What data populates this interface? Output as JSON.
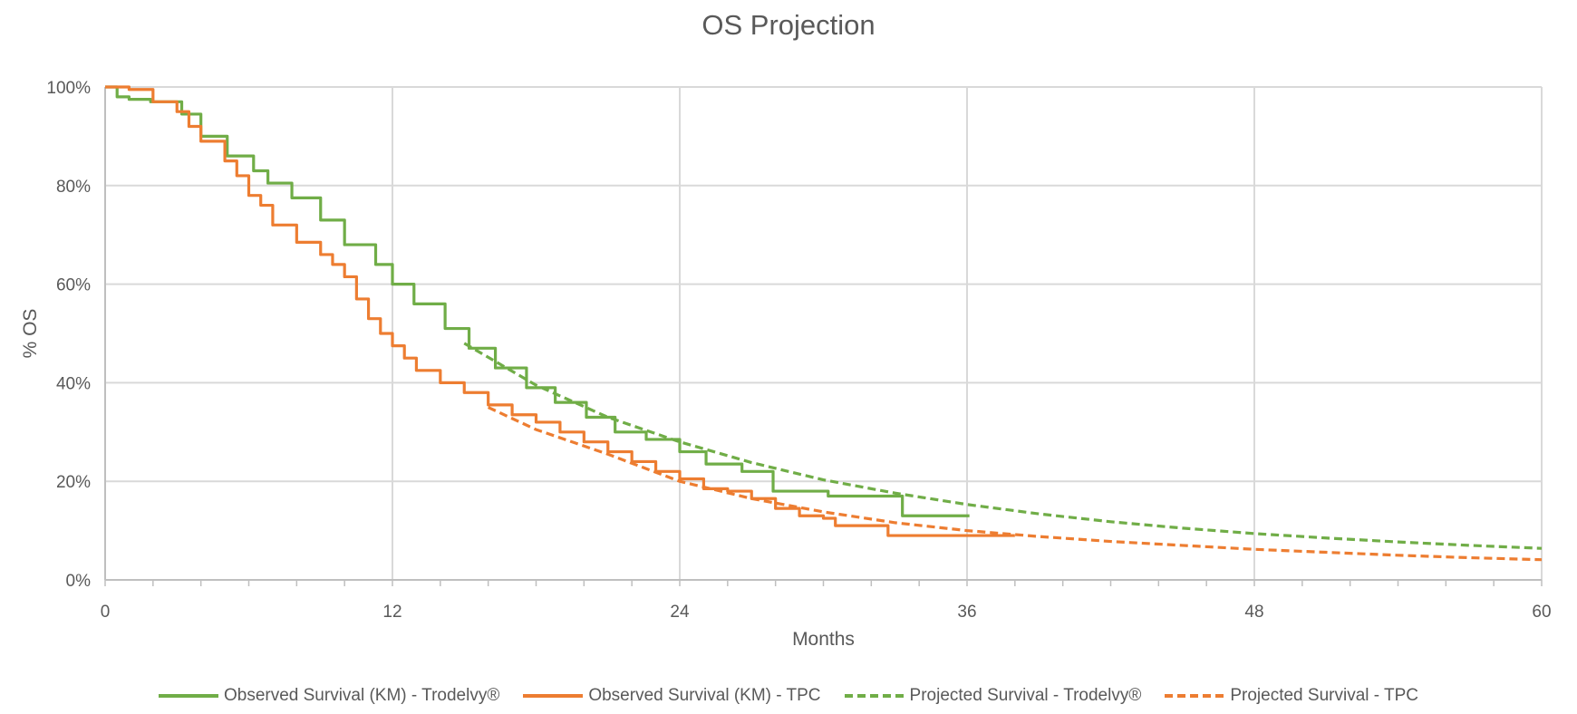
{
  "chart_data": {
    "type": "line",
    "title": "OS Projection",
    "xlabel": "Months",
    "ylabel": "% OS",
    "xlim": [
      0,
      60
    ],
    "ylim": [
      0,
      100
    ],
    "x_ticks": [
      "0",
      "12",
      "24",
      "36",
      "48",
      "60"
    ],
    "y_ticks": [
      "0%",
      "20%",
      "40%",
      "60%",
      "80%",
      "100%"
    ],
    "grid": true,
    "legend_position": "bottom",
    "series": [
      {
        "name": "Observed Survival (KM) - Trodelvy®",
        "color": "#70AD47",
        "style": "solid",
        "step": true,
        "x": [
          0,
          0.5,
          1,
          1.9,
          3.2,
          4,
          5.1,
          6.2,
          6.8,
          7.8,
          9,
          10,
          11.3,
          12,
          12.9,
          14.2,
          15.2,
          16.3,
          17.6,
          18.8,
          20.1,
          21.3,
          22.6,
          24,
          25.1,
          26.6,
          27.9,
          30.2,
          32.7,
          33.3,
          36.1
        ],
        "y": [
          100,
          98,
          97.5,
          97,
          94.5,
          90,
          86,
          83,
          80.5,
          77.5,
          73,
          68,
          64,
          60,
          56,
          51,
          47,
          43,
          39,
          36,
          33,
          30,
          28.5,
          26,
          23.5,
          22,
          18,
          17,
          17,
          13,
          13
        ]
      },
      {
        "name": "Observed Survival (KM) - TPC",
        "color": "#ED7D31",
        "style": "solid",
        "step": true,
        "x": [
          0,
          1,
          2,
          3,
          3.5,
          4,
          5,
          5.5,
          6,
          6.5,
          7,
          8,
          9,
          9.5,
          10,
          10.5,
          11,
          11.5,
          12,
          12.5,
          13,
          14,
          15,
          16,
          17,
          18,
          19,
          20,
          21,
          22,
          23,
          24,
          25,
          26,
          27,
          28,
          29,
          30,
          30.5,
          32,
          32.7,
          38
        ],
        "y": [
          100,
          99.5,
          97,
          95,
          92,
          89,
          85,
          82,
          78,
          76,
          72,
          68.5,
          66,
          64,
          61.5,
          57,
          53,
          50,
          47.5,
          45,
          42.5,
          40,
          38,
          35.5,
          33.5,
          32,
          30,
          28,
          26,
          24,
          22,
          20.5,
          18.5,
          18,
          16.5,
          14.5,
          13,
          12.5,
          11,
          11,
          9,
          9
        ]
      },
      {
        "name": "Projected Survival - Trodelvy®",
        "color": "#70AD47",
        "style": "dashed",
        "step": false,
        "x": [
          15,
          18,
          21,
          24,
          27,
          30,
          33,
          36,
          39,
          42,
          45,
          48,
          51,
          54,
          57,
          60
        ],
        "y": [
          48,
          39.5,
          33,
          28,
          23.8,
          20.3,
          17.6,
          15.3,
          13.4,
          11.8,
          10.5,
          9.4,
          8.5,
          7.7,
          7.0,
          6.4
        ]
      },
      {
        "name": "Projected Survival - TPC",
        "color": "#ED7D31",
        "style": "dashed",
        "step": false,
        "x": [
          16,
          18,
          21,
          24,
          27,
          30,
          33,
          36,
          39,
          42,
          45,
          48,
          51,
          54,
          57,
          60
        ],
        "y": [
          35,
          30.5,
          25.5,
          20,
          16.5,
          13.8,
          11.6,
          10,
          8.8,
          7.8,
          7.0,
          6.2,
          5.6,
          5.0,
          4.5,
          4.1
        ]
      }
    ]
  }
}
